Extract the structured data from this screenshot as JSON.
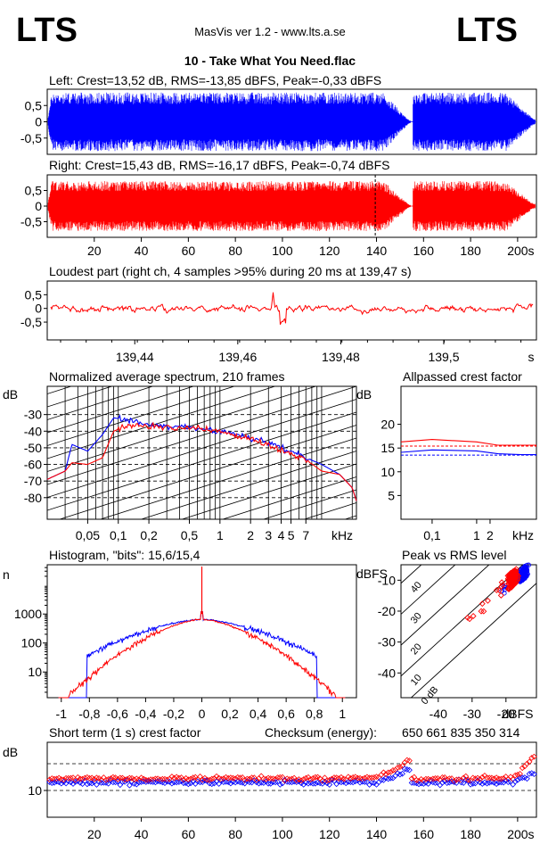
{
  "header": {
    "logo_left": "LTS",
    "logo_right": "LTS",
    "app_title": "MasVis ver 1.2 - www.lts.a.se",
    "file_title": "10 - Take What You Need.flac"
  },
  "colors": {
    "left": "#0000ff",
    "right": "#ff0000",
    "axis": "#000000"
  },
  "chart_data": [
    {
      "id": "left_waveform",
      "type": "area",
      "title": "Left: Crest=13,52 dB, RMS=-13,85 dBFS, Peak=-0,33 dBFS",
      "ylim": [
        -1,
        1
      ],
      "yticks": [
        "0.5",
        "0",
        "-0.5"
      ],
      "xlim": [
        0,
        208
      ],
      "gap_seconds": [
        154.5,
        155.5
      ],
      "envelope_peak": 0.9
    },
    {
      "id": "right_waveform",
      "type": "area",
      "title": "Right: Crest=15,43 dB, RMS=-16,17 dBFS, Peak=-0,74 dBFS",
      "ylim": [
        -1,
        1
      ],
      "yticks": [
        "0.5",
        "0",
        "-0.5"
      ],
      "xlim": [
        0,
        208
      ],
      "xticks": [
        20,
        40,
        60,
        80,
        100,
        120,
        140,
        160,
        180,
        200
      ],
      "x_unit": "s",
      "marker_seconds": 139.47,
      "envelope_peak": 0.8
    },
    {
      "id": "loudest_part",
      "type": "line",
      "title": "Loudest part (right ch, 4 samples >95% during 20 ms at 139,47 s)",
      "ylim": [
        -1,
        1
      ],
      "yticks": [
        "0.5",
        "0",
        "-0.5"
      ],
      "xlim": [
        139.423,
        139.518
      ],
      "xticks": [
        "139,44",
        "139,46",
        "139,48",
        "139,5"
      ],
      "x_unit": "s"
    },
    {
      "id": "spectrum",
      "type": "line",
      "title": "Normalized average spectrum, 210 frames",
      "ylabel": "dB",
      "ylim": [
        -93,
        -13
      ],
      "yticks": [
        -30,
        -40,
        -50,
        -60,
        -70,
        -80
      ],
      "xscale": "log",
      "xlim": [
        0.02,
        22
      ],
      "xticks": [
        "0,05",
        "0,1",
        "0,2",
        "0,5",
        "1",
        "2",
        "3",
        "4",
        "5",
        "7"
      ],
      "x_unit": "kHz",
      "series": [
        {
          "color": "blue",
          "f": [
            0.02,
            0.03,
            0.035,
            0.05,
            0.07,
            0.09,
            0.12,
            0.2,
            0.5,
            1,
            2,
            3,
            5,
            7,
            10,
            15,
            20,
            22
          ],
          "db": [
            -69,
            -64,
            -48,
            -52,
            -42,
            -32,
            -33,
            -36,
            -38,
            -40,
            -44,
            -47,
            -52,
            -56,
            -60,
            -66,
            -74,
            -82
          ]
        },
        {
          "color": "red",
          "f": [
            0.02,
            0.03,
            0.035,
            0.05,
            0.07,
            0.09,
            0.12,
            0.2,
            0.5,
            1,
            2,
            3,
            5,
            7,
            10,
            15,
            20,
            22
          ],
          "db": [
            -69,
            -64,
            -59,
            -60,
            -56,
            -40,
            -37,
            -37,
            -38,
            -40,
            -45,
            -48,
            -54,
            -57,
            -64,
            -66,
            -74,
            -82
          ]
        }
      ]
    },
    {
      "id": "allpassed_crest",
      "type": "line",
      "title": "Allpassed crest factor",
      "ylabel": "dB",
      "ylim": [
        0,
        28
      ],
      "yticks": [
        5,
        10,
        15,
        20
      ],
      "xscale": "log",
      "xlim": [
        0.02,
        22
      ],
      "xticks": [
        "0,1",
        "1",
        "2"
      ],
      "x_unit": "kHz",
      "series": [
        {
          "color": "red",
          "f": [
            0.02,
            0.1,
            1,
            3,
            10,
            22
          ],
          "db": [
            16.3,
            16.8,
            16.3,
            15.6,
            15.6,
            15.6
          ]
        },
        {
          "color": "blue",
          "f": [
            0.02,
            0.1,
            1,
            3,
            10,
            22
          ],
          "db": [
            14.1,
            14.6,
            14.4,
            13.8,
            13.6,
            13.6
          ]
        }
      ],
      "reference_db": [
        15.4,
        13.5
      ]
    },
    {
      "id": "histogram",
      "type": "line",
      "title": "Histogram, \"bits\": 15,6/15,4",
      "ylabel": "n",
      "yscale": "log",
      "ylim": [
        1.3,
        50000
      ],
      "yticks": [
        "1000",
        "100",
        "10"
      ],
      "xlim": [
        -1.1,
        1.1
      ],
      "xticks": [
        "-1",
        "-0,8",
        "-0,6",
        "-0,4",
        "-0,2",
        "0",
        "0,2",
        "0,4",
        "0,6",
        "0,8",
        "1"
      ]
    },
    {
      "id": "peak_vs_rms",
      "type": "scatter",
      "title": "Peak vs RMS level",
      "ylabel": "dBFS",
      "xlabel": "dBFS",
      "xlim": [
        -51,
        -11
      ],
      "ylim": [
        -48,
        -5
      ],
      "xticks": [
        -40,
        -30,
        -20
      ],
      "yticks": [
        -10,
        -20,
        -30,
        -40
      ],
      "diagonal_labels": [
        "40",
        "30",
        "20",
        "10",
        "0 dB"
      ]
    },
    {
      "id": "short_term_crest",
      "type": "scatter",
      "title": "Short term (1 s) crest factor",
      "checksum_label": "Checksum (energy):",
      "checksum_value": "650 661 835 350 314",
      "ylabel": "dB",
      "ylim": [
        0,
        28
      ],
      "yticks": [
        10
      ],
      "xlim": [
        0,
        208
      ],
      "xticks": [
        20,
        40,
        60,
        80,
        100,
        120,
        140,
        160,
        180,
        200
      ],
      "x_unit": "s"
    }
  ]
}
